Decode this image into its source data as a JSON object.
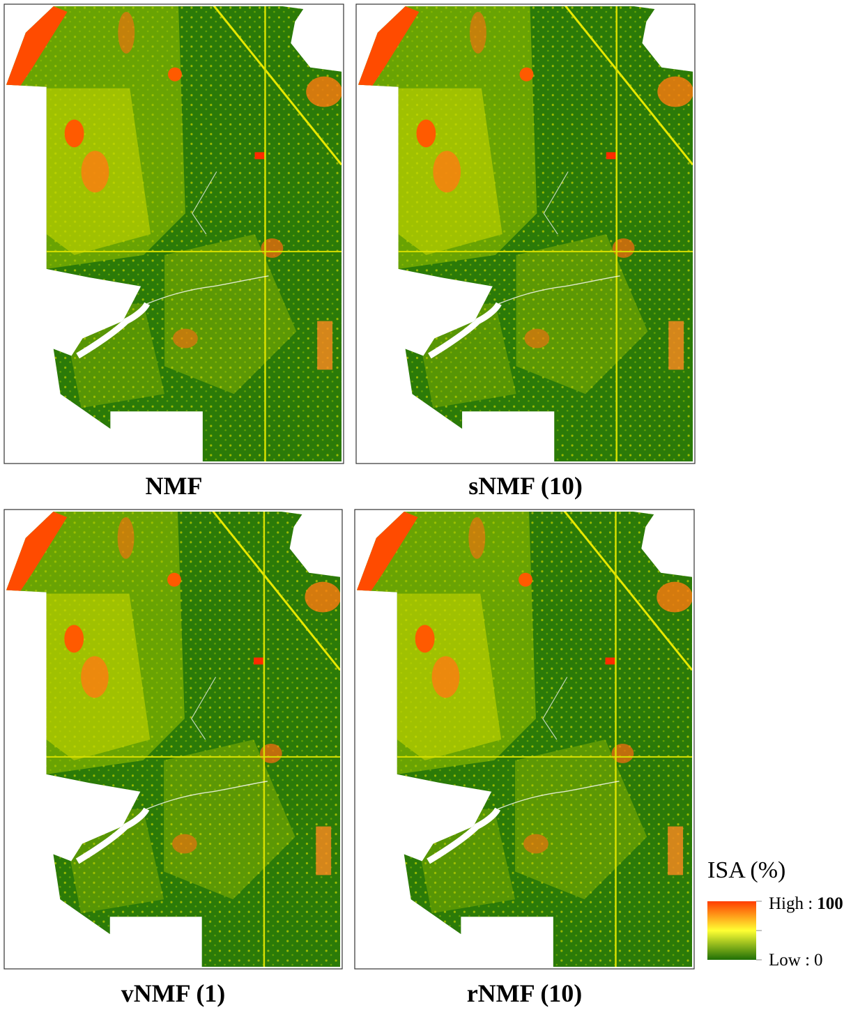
{
  "panels": [
    {
      "label": "NMF"
    },
    {
      "label": "sNMF (10)"
    },
    {
      "label": "vNMF (1)"
    },
    {
      "label": "rNMF (10)"
    }
  ],
  "legend": {
    "title": "ISA (%)",
    "high": {
      "label": "High :",
      "value": 100
    },
    "low": {
      "label": "Low :",
      "value": 0
    }
  }
}
